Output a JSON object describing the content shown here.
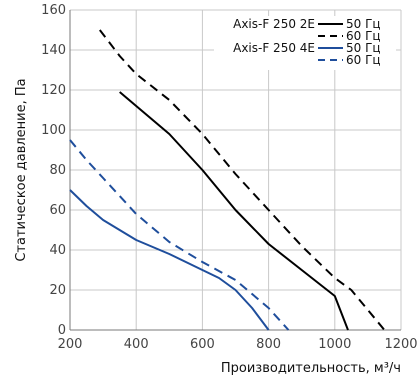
{
  "chart_data": {
    "type": "line",
    "title": "",
    "xlabel": "Производительность, м³/ч",
    "ylabel": "Статическое давление, Па",
    "xlim": [
      200,
      1200
    ],
    "ylim": [
      0,
      160
    ],
    "x_ticks": [
      200,
      400,
      600,
      800,
      1000,
      1200
    ],
    "y_ticks": [
      0,
      20,
      40,
      60,
      80,
      100,
      120,
      140,
      160
    ],
    "grid": true,
    "legend_position": "top-right",
    "legend_groups": [
      {
        "model": "Axis-F 250 2E",
        "entries": [
          "50 Гц",
          "60 Гц"
        ]
      },
      {
        "model": "Axis-F 250 4E",
        "entries": [
          "50 Гц",
          "60 Гц"
        ]
      }
    ],
    "series": [
      {
        "group": 0,
        "entry": 0,
        "color": "#000000",
        "dash": "solid",
        "points": [
          [
            350,
            119
          ],
          [
            400,
            112
          ],
          [
            500,
            98
          ],
          [
            600,
            80
          ],
          [
            700,
            60
          ],
          [
            800,
            43
          ],
          [
            900,
            30
          ],
          [
            1000,
            17
          ],
          [
            1040,
            0
          ]
        ]
      },
      {
        "group": 0,
        "entry": 1,
        "color": "#000000",
        "dash": "dashed",
        "points": [
          [
            290,
            150
          ],
          [
            350,
            137
          ],
          [
            400,
            128
          ],
          [
            500,
            115
          ],
          [
            600,
            98
          ],
          [
            700,
            78
          ],
          [
            800,
            60
          ],
          [
            900,
            42
          ],
          [
            1000,
            26
          ],
          [
            1050,
            20
          ],
          [
            1100,
            10
          ],
          [
            1150,
            0
          ]
        ]
      },
      {
        "group": 1,
        "entry": 0,
        "color": "#1f4e9c",
        "dash": "solid",
        "points": [
          [
            200,
            70
          ],
          [
            250,
            62
          ],
          [
            300,
            55
          ],
          [
            400,
            45
          ],
          [
            500,
            38
          ],
          [
            600,
            30
          ],
          [
            650,
            26
          ],
          [
            700,
            20
          ],
          [
            750,
            11
          ],
          [
            800,
            0
          ]
        ]
      },
      {
        "group": 1,
        "entry": 1,
        "color": "#1f4e9c",
        "dash": "dashed",
        "points": [
          [
            200,
            95
          ],
          [
            250,
            85
          ],
          [
            300,
            76
          ],
          [
            400,
            58
          ],
          [
            500,
            44
          ],
          [
            600,
            34
          ],
          [
            700,
            25
          ],
          [
            800,
            11
          ],
          [
            860,
            0
          ]
        ]
      }
    ]
  }
}
